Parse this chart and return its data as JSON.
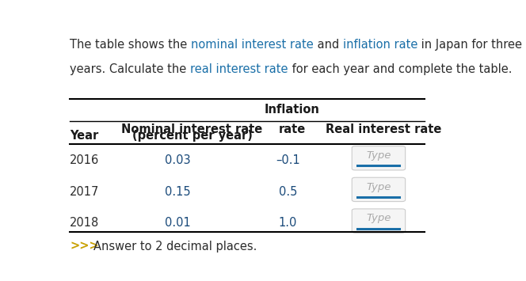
{
  "bg_color": "#ffffff",
  "desc_color_blue": "#1a6fa8",
  "desc_color_dark": "#2c2c2c",
  "years": [
    "2016",
    "2017",
    "2018"
  ],
  "nominal": [
    "0.03",
    "0.15",
    "0.01"
  ],
  "inflation": [
    "–0.1",
    "0.5",
    "1.0"
  ],
  "real_placeholder": "Type",
  "footer_color_arrow": "#c8a000",
  "footer_color_text": "#2c2c2c",
  "table_line_color": "#000000",
  "type_text_color": "#aaaaaa",
  "type_underline_color": "#1a6fa8",
  "data_color": "#1a4a7a",
  "year_color": "#2c2c2c",
  "header_bold_color": "#1a1a1a",
  "type_box_edge": "#cccccc",
  "type_box_face": "#f5f5f5"
}
